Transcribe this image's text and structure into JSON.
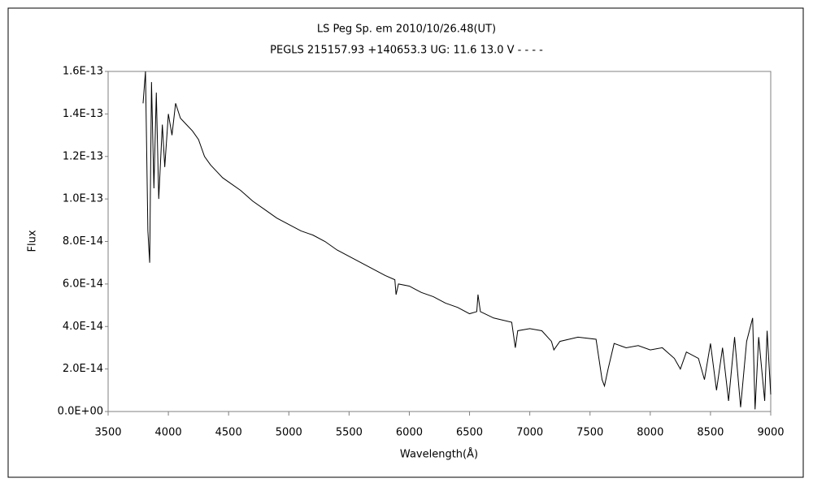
{
  "chart_data": {
    "type": "line",
    "title": "LS Peg   Sp. em    2010/10/26.48(UT)",
    "subtitle": "PEGLS 215157.93 +140653.3 UG: 11.6 13.0 V - - - -",
    "x_label": "Wavelength(Å)",
    "y_label": "Flux",
    "xlim": [
      3500,
      9000
    ],
    "xticks": [
      3500,
      4000,
      4500,
      5000,
      5500,
      6000,
      6500,
      7000,
      7500,
      8000,
      8500,
      9000
    ],
    "ylim": [
      0,
      1.6e-13
    ],
    "yticks": [
      {
        "value": 0,
        "label": "0.0E+00"
      },
      {
        "value": 2e-14,
        "label": "2.0E-14"
      },
      {
        "value": 4e-14,
        "label": "4.0E-14"
      },
      {
        "value": 6e-14,
        "label": "6.0E-14"
      },
      {
        "value": 8e-14,
        "label": "8.0E-14"
      },
      {
        "value": 1e-13,
        "label": "1.0E-13"
      },
      {
        "value": 1.2e-13,
        "label": "1.2E-13"
      },
      {
        "value": 1.4e-13,
        "label": "1.4E-13"
      },
      {
        "value": 1.6e-13,
        "label": "1.6E-13"
      }
    ],
    "grid": false,
    "series": [
      {
        "name": "LS Peg",
        "color": "#000000",
        "x": [
          3790,
          3810,
          3830,
          3845,
          3860,
          3880,
          3900,
          3920,
          3950,
          3970,
          4000,
          4030,
          4060,
          4100,
          4150,
          4200,
          4250,
          4300,
          4350,
          4400,
          4450,
          4500,
          4600,
          4700,
          4800,
          4900,
          5000,
          5100,
          5200,
          5300,
          5400,
          5500,
          5600,
          5700,
          5800,
          5880,
          5890,
          5910,
          6000,
          6100,
          6200,
          6300,
          6400,
          6500,
          6560,
          6570,
          6590,
          6700,
          6850,
          6880,
          6900,
          7000,
          7100,
          7180,
          7200,
          7250,
          7400,
          7550,
          7600,
          7620,
          7650,
          7700,
          7800,
          7900,
          8000,
          8100,
          8200,
          8250,
          8300,
          8400,
          8450,
          8500,
          8550,
          8600,
          8650,
          8700,
          8750,
          8800,
          8850,
          8870,
          8900,
          8950,
          8970,
          9000
        ],
        "values": [
          1.45e-13,
          1.6e-13,
          8.5e-14,
          7e-14,
          1.55e-13,
          1.05e-13,
          1.5e-13,
          1e-13,
          1.35e-13,
          1.15e-13,
          1.4e-13,
          1.3e-13,
          1.45e-13,
          1.38e-13,
          1.35e-13,
          1.32e-13,
          1.28e-13,
          1.2e-13,
          1.16e-13,
          1.13e-13,
          1.1e-13,
          1.08e-13,
          1.04e-13,
          9.9e-14,
          9.5e-14,
          9.1e-14,
          8.8e-14,
          8.5e-14,
          8.3e-14,
          8e-14,
          7.6e-14,
          7.3e-14,
          7e-14,
          6.7e-14,
          6.4e-14,
          6.2e-14,
          5.5e-14,
          6e-14,
          5.9e-14,
          5.6e-14,
          5.4e-14,
          5.1e-14,
          4.9e-14,
          4.6e-14,
          4.7e-14,
          5.5e-14,
          4.7e-14,
          4.4e-14,
          4.2e-14,
          3e-14,
          3.8e-14,
          3.9e-14,
          3.8e-14,
          3.3e-14,
          2.9e-14,
          3.3e-14,
          3.5e-14,
          3.4e-14,
          1.5e-14,
          1.2e-14,
          2e-14,
          3.2e-14,
          3e-14,
          3.1e-14,
          2.9e-14,
          3e-14,
          2.5e-14,
          2e-14,
          2.8e-14,
          2.5e-14,
          1.5e-14,
          3.2e-14,
          1e-14,
          3e-14,
          5e-15,
          3.5e-14,
          2e-15,
          3.3e-14,
          4.4e-14,
          1e-15,
          3.5e-14,
          5e-15,
          3.8e-14,
          8e-15
        ]
      }
    ]
  }
}
